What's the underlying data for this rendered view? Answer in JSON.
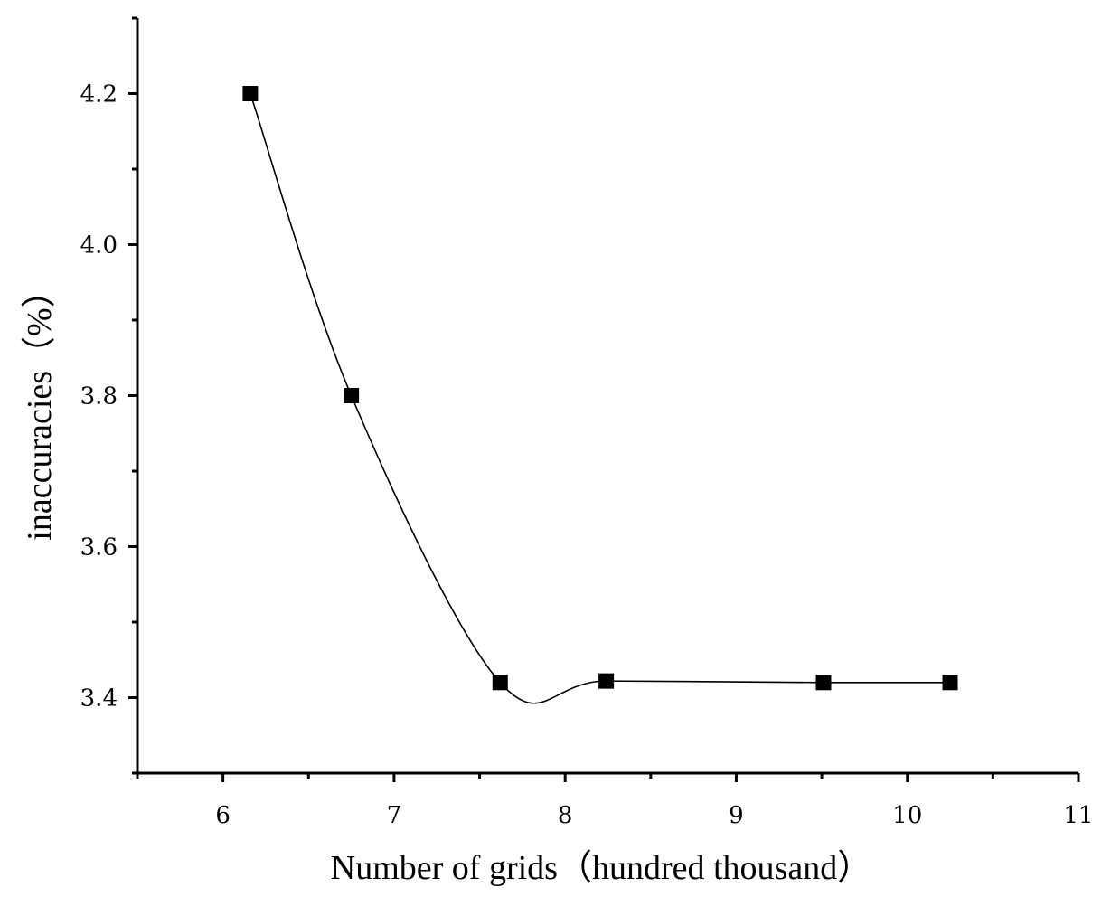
{
  "chart_data": {
    "type": "line",
    "title": "",
    "xlabel": "Number of grids（hundred thousand）",
    "ylabel": "inaccuracies（%）",
    "xlim": [
      5.5,
      11
    ],
    "ylim": [
      3.3,
      4.3
    ],
    "x_ticks": [
      "6",
      "7",
      "8",
      "9",
      "10",
      "11"
    ],
    "y_ticks": [
      "3.4",
      "3.6",
      "3.8",
      "4.0",
      "4.2"
    ],
    "grid": false,
    "legend": "none",
    "line_style": "smooth spline",
    "marker": "filled square",
    "color": "#000000",
    "series": [
      {
        "x": [
          6.16,
          6.75,
          7.62,
          8.24,
          9.51,
          10.25
        ],
        "y": [
          4.2,
          3.8,
          3.42,
          3.422,
          3.42,
          3.42
        ]
      }
    ]
  }
}
